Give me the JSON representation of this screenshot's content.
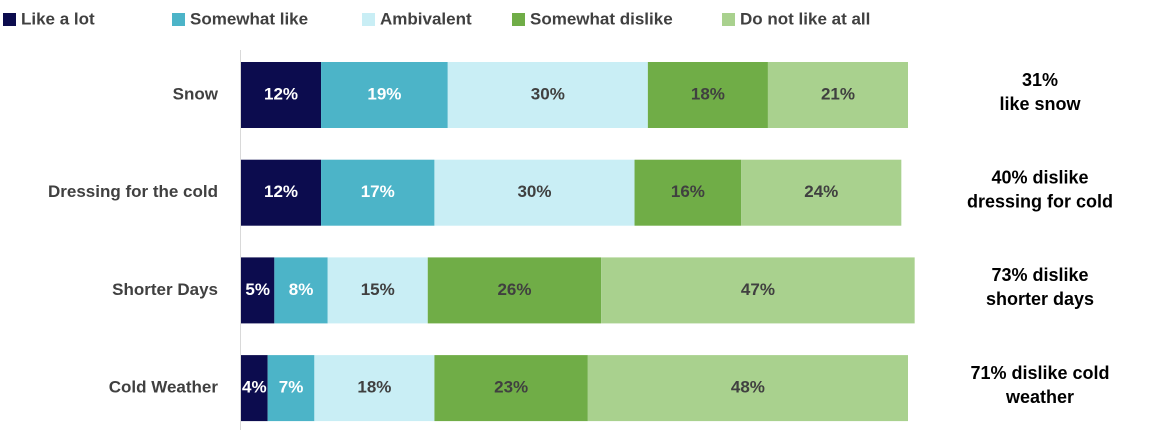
{
  "chart_data": {
    "type": "stacked-bar-horizontal",
    "categories": [
      "Snow",
      "Dressing for the cold",
      "Shorter Days",
      "Cold Weather"
    ],
    "xlim": [
      0,
      100
    ],
    "series": [
      {
        "name": "Like a lot",
        "color": "#0c0c4e",
        "values": [
          12,
          12,
          5,
          4
        ],
        "value_labels": [
          "12%",
          "12%",
          "5%",
          "4%"
        ]
      },
      {
        "name": "Somewhat like",
        "color": "#4cb4c8",
        "values": [
          19,
          17,
          8,
          7
        ],
        "value_labels": [
          "19%",
          "17%",
          "8%",
          "7%"
        ]
      },
      {
        "name": "Ambivalent",
        "color": "#c9eef5",
        "values": [
          30,
          30,
          15,
          18
        ],
        "value_labels": [
          "30%",
          "30%",
          "15%",
          "18%"
        ]
      },
      {
        "name": "Somewhat dislike",
        "color": "#70ad47",
        "values": [
          18,
          16,
          26,
          23
        ],
        "value_labels": [
          "18%",
          "16%",
          "26%",
          "23%"
        ]
      },
      {
        "name": "Do not like at all",
        "color": "#a9d18e",
        "values": [
          21,
          24,
          47,
          48
        ],
        "value_labels": [
          "21%",
          "24%",
          "47%",
          "48%"
        ]
      }
    ],
    "annotations": [
      [
        "31%",
        "like snow"
      ],
      [
        "40% dislike",
        "dressing for cold"
      ],
      [
        "73% dislike",
        "shorter days"
      ],
      [
        "71% dislike cold",
        "weather"
      ]
    ]
  }
}
